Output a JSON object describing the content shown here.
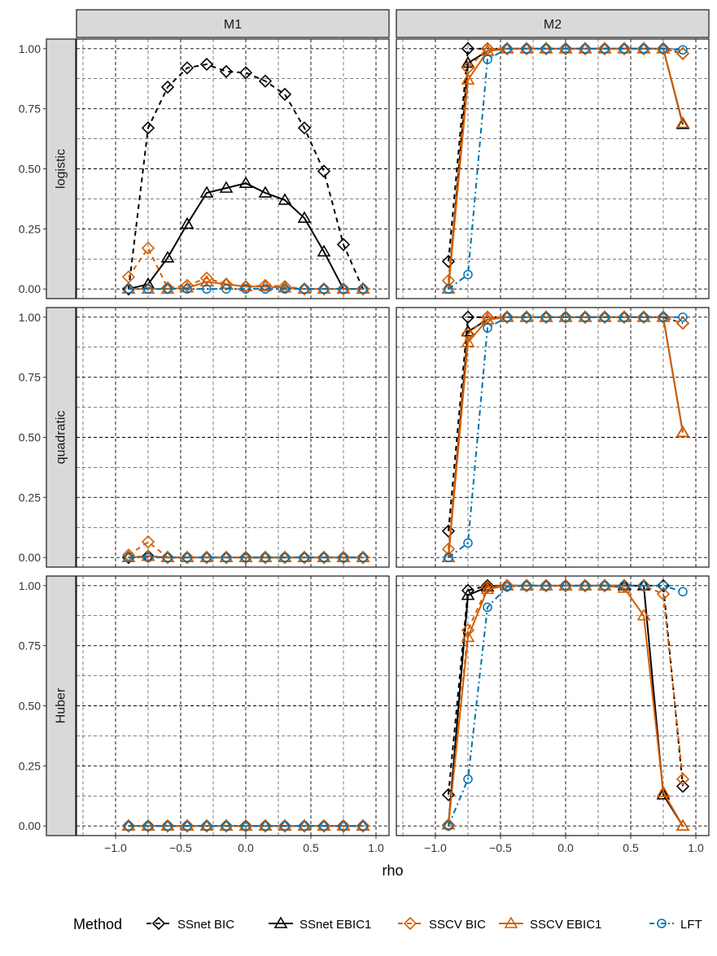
{
  "chart_data": {
    "type": "line",
    "xlabel": "rho",
    "ylabel": "",
    "xlim": [
      -1.3,
      1.1
    ],
    "ylim": [
      -0.04,
      1.04
    ],
    "xticks": [
      -1.0,
      -0.5,
      0.0,
      0.5,
      1.0
    ],
    "xtick_labels": [
      "−1.0",
      "−0.5",
      "0.0",
      "0.5",
      "1.0"
    ],
    "yticks": [
      0,
      0.25,
      0.5,
      0.75,
      1.0
    ],
    "ytick_labels": [
      "0.00",
      "0.25",
      "0.50",
      "0.75",
      "1.00"
    ],
    "grid": true,
    "columns": [
      "M1",
      "M2"
    ],
    "rows": [
      "logistic",
      "quadratic",
      "Huber"
    ],
    "x": [
      -0.9,
      -0.75,
      -0.6,
      -0.45,
      -0.3,
      -0.15,
      0.0,
      0.15,
      0.3,
      0.45,
      0.6,
      0.75,
      0.9
    ],
    "legend": {
      "title": "Method",
      "position": "bottom",
      "items": [
        "SSnet BIC",
        "SSnet EBIC1",
        "SSCV BIC",
        "SSCV EBIC1",
        "LFT"
      ]
    },
    "series_styles": [
      {
        "name": "SSnet BIC",
        "color": "#000000",
        "marker": "diamond",
        "dash": "6,5"
      },
      {
        "name": "SSnet EBIC1",
        "color": "#000000",
        "marker": "triangle",
        "dash": ""
      },
      {
        "name": "SSCV BIC",
        "color": "#D55E00",
        "marker": "diamond",
        "dash": "6,5"
      },
      {
        "name": "SSCV EBIC1",
        "color": "#D55E00",
        "marker": "triangle",
        "dash": ""
      },
      {
        "name": "LFT",
        "color": "#0072B2",
        "marker": "circle",
        "dash": "7,4,2,4"
      }
    ],
    "panels": [
      {
        "row": "logistic",
        "col": "M1",
        "series": [
          {
            "name": "SSnet BIC",
            "values": [
              0.0,
              0.67,
              0.84,
              0.92,
              0.935,
              0.905,
              0.9,
              0.865,
              0.81,
              0.67,
              0.49,
              0.185,
              0.0
            ]
          },
          {
            "name": "SSnet EBIC1",
            "values": [
              0.0,
              0.02,
              0.13,
              0.27,
              0.4,
              0.42,
              0.44,
              0.4,
              0.37,
              0.295,
              0.155,
              0.0,
              0.0
            ]
          },
          {
            "name": "SSCV BIC",
            "values": [
              0.05,
              0.17,
              0.005,
              0.015,
              0.045,
              0.02,
              0.01,
              0.015,
              0.01,
              0.0,
              0.0,
              0.0,
              0.0
            ]
          },
          {
            "name": "SSCV EBIC1",
            "values": [
              0.0,
              0.0,
              0.0,
              0.005,
              0.03,
              0.02,
              0.01,
              0.01,
              0.005,
              0.0,
              0.0,
              0.0,
              0.0
            ]
          },
          {
            "name": "LFT",
            "values": [
              0.0,
              0.0,
              0.0,
              0.0,
              0.0,
              0.0,
              0.0,
              0.0,
              0.0,
              0.0,
              0.0,
              0.0,
              0.0
            ]
          }
        ]
      },
      {
        "row": "logistic",
        "col": "M2",
        "series": [
          {
            "name": "SSnet BIC",
            "values": [
              0.115,
              1.0,
              1.0,
              1.0,
              1.0,
              1.0,
              1.0,
              1.0,
              1.0,
              1.0,
              1.0,
              1.0,
              0.98
            ]
          },
          {
            "name": "SSnet EBIC1",
            "values": [
              0.0,
              0.94,
              0.99,
              1.0,
              1.0,
              1.0,
              1.0,
              1.0,
              1.0,
              1.0,
              1.0,
              1.0,
              0.685
            ]
          },
          {
            "name": "SSCV BIC",
            "values": [
              0.035,
              0.92,
              1.0,
              1.0,
              1.0,
              1.0,
              1.0,
              1.0,
              1.0,
              1.0,
              1.0,
              1.0,
              0.98
            ]
          },
          {
            "name": "SSCV EBIC1",
            "values": [
              0.0,
              0.87,
              0.99,
              1.0,
              1.0,
              1.0,
              1.0,
              1.0,
              1.0,
              1.0,
              1.0,
              1.0,
              0.69
            ]
          },
          {
            "name": "LFT",
            "values": [
              0.0,
              0.06,
              0.955,
              1.0,
              1.0,
              1.0,
              1.0,
              1.0,
              1.0,
              1.0,
              1.0,
              1.0,
              0.995
            ]
          }
        ]
      },
      {
        "row": "quadratic",
        "col": "M1",
        "series": [
          {
            "name": "SSnet BIC",
            "values": [
              0.0,
              0.005,
              0.0,
              0.0,
              0.0,
              0.0,
              0.0,
              0.0,
              0.0,
              0.0,
              0.0,
              0.0,
              0.0
            ]
          },
          {
            "name": "SSnet EBIC1",
            "values": [
              0.0,
              0.005,
              0.0,
              0.0,
              0.0,
              0.0,
              0.0,
              0.0,
              0.0,
              0.0,
              0.0,
              0.0,
              0.0
            ]
          },
          {
            "name": "SSCV BIC",
            "values": [
              0.01,
              0.065,
              0.0,
              0.0,
              0.0,
              0.0,
              0.0,
              0.0,
              0.0,
              0.0,
              0.0,
              0.0,
              0.0
            ]
          },
          {
            "name": "SSCV EBIC1",
            "values": [
              0.0,
              0.005,
              0.0,
              0.0,
              0.0,
              0.0,
              0.0,
              0.0,
              0.0,
              0.0,
              0.0,
              0.0,
              0.0
            ]
          },
          {
            "name": "LFT",
            "values": [
              0.0,
              0.0,
              0.0,
              0.0,
              0.0,
              0.0,
              0.0,
              0.0,
              0.0,
              0.0,
              0.0,
              0.0,
              0.0
            ]
          }
        ]
      },
      {
        "row": "quadratic",
        "col": "M2",
        "series": [
          {
            "name": "SSnet BIC",
            "values": [
              0.11,
              1.0,
              1.0,
              1.0,
              1.0,
              1.0,
              1.0,
              1.0,
              1.0,
              1.0,
              1.0,
              1.0,
              0.975
            ]
          },
          {
            "name": "SSnet EBIC1",
            "values": [
              0.0,
              0.94,
              0.99,
              1.0,
              1.0,
              1.0,
              1.0,
              1.0,
              1.0,
              1.0,
              1.0,
              1.0,
              0.52
            ]
          },
          {
            "name": "SSCV BIC",
            "values": [
              0.035,
              0.93,
              1.0,
              1.0,
              1.0,
              1.0,
              1.0,
              1.0,
              1.0,
              1.0,
              1.0,
              1.0,
              0.975
            ]
          },
          {
            "name": "SSCV EBIC1",
            "values": [
              0.0,
              0.895,
              0.99,
              1.0,
              1.0,
              1.0,
              1.0,
              1.0,
              1.0,
              1.0,
              1.0,
              1.0,
              0.52
            ]
          },
          {
            "name": "LFT",
            "values": [
              0.0,
              0.06,
              0.955,
              1.0,
              1.0,
              1.0,
              1.0,
              1.0,
              1.0,
              1.0,
              1.0,
              1.0,
              1.0
            ]
          }
        ]
      },
      {
        "row": "Huber",
        "col": "M1",
        "series": [
          {
            "name": "SSnet BIC",
            "values": [
              0.0,
              0.0,
              0.0,
              0.0,
              0.0,
              0.0,
              0.0,
              0.0,
              0.0,
              0.0,
              0.0,
              0.0,
              0.0
            ]
          },
          {
            "name": "SSnet EBIC1",
            "values": [
              0.0,
              0.0,
              0.0,
              0.0,
              0.0,
              0.0,
              0.0,
              0.0,
              0.0,
              0.0,
              0.0,
              0.0,
              0.0
            ]
          },
          {
            "name": "SSCV BIC",
            "values": [
              0.0,
              0.0,
              0.0,
              0.0,
              0.0,
              0.0,
              0.0,
              0.0,
              0.0,
              0.0,
              0.0,
              0.0,
              0.0
            ]
          },
          {
            "name": "SSCV EBIC1",
            "values": [
              0.0,
              0.0,
              0.0,
              0.0,
              0.0,
              0.0,
              0.0,
              0.0,
              0.0,
              0.0,
              0.0,
              0.0,
              0.0
            ]
          },
          {
            "name": "LFT",
            "values": [
              0.0,
              0.0,
              0.0,
              0.0,
              0.0,
              0.0,
              0.0,
              0.0,
              0.0,
              0.0,
              0.0,
              0.0,
              0.0
            ]
          }
        ]
      },
      {
        "row": "Huber",
        "col": "M2",
        "series": [
          {
            "name": "SSnet BIC",
            "values": [
              0.13,
              0.98,
              1.0,
              1.0,
              1.0,
              1.0,
              1.0,
              1.0,
              1.0,
              1.0,
              1.0,
              1.0,
              0.165
            ]
          },
          {
            "name": "SSnet EBIC1",
            "values": [
              0.005,
              0.96,
              0.995,
              1.0,
              1.0,
              1.0,
              1.0,
              1.0,
              1.0,
              1.0,
              1.0,
              0.13,
              0.0
            ]
          },
          {
            "name": "SSCV BIC",
            "values": [
              0.005,
              0.815,
              0.995,
              1.0,
              1.0,
              1.0,
              1.0,
              1.0,
              1.0,
              1.0,
              1.0,
              0.965,
              0.195
            ]
          },
          {
            "name": "SSCV EBIC1",
            "values": [
              0.005,
              0.785,
              0.985,
              1.0,
              1.0,
              1.0,
              1.0,
              1.0,
              1.0,
              0.99,
              0.875,
              0.14,
              0.0
            ]
          },
          {
            "name": "LFT",
            "values": [
              0.0,
              0.195,
              0.91,
              0.995,
              1.0,
              1.0,
              1.0,
              1.0,
              1.0,
              1.0,
              1.0,
              1.0,
              0.975
            ]
          }
        ]
      }
    ]
  }
}
